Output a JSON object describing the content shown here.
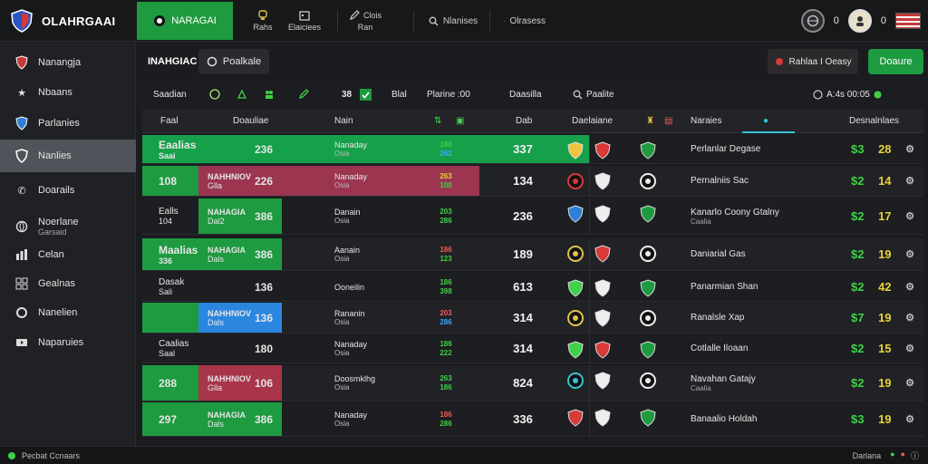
{
  "app": {
    "title": "OLAHRGAAI",
    "active_tab": "NARAGAI"
  },
  "top_nav": [
    {
      "icon": "trophy-icon",
      "label": "Rahs"
    },
    {
      "icon": "calendar-icon",
      "label": "Elaiciees"
    },
    {
      "icon": "pencil-icon",
      "label": "Clois",
      "sub": "Ran"
    },
    {
      "icon": "search-icon",
      "label": "Nlanises"
    },
    {
      "icon": "gear-icon",
      "label": "Olrasess"
    }
  ],
  "top_right": {
    "count1": "0",
    "count2": "0"
  },
  "sidebar": {
    "items": [
      {
        "icon": "shield-icon",
        "label": "Nanangja"
      },
      {
        "icon": "star-icon",
        "label": "Nbaans"
      },
      {
        "icon": "flag-icon",
        "label": "Parlanies"
      },
      {
        "icon": "shield-check-icon",
        "label": "Nanlies"
      },
      {
        "icon": "phone-icon",
        "label": "Doarails"
      },
      {
        "icon": "globe-icon",
        "label": "Noerlane",
        "sub": "Garsaid"
      },
      {
        "icon": "chart-icon",
        "label": "Celan"
      },
      {
        "icon": "grid-icon",
        "label": "Gealnas"
      },
      {
        "icon": "circle-icon",
        "label": "Nanelien"
      },
      {
        "icon": "video-icon",
        "label": "Naparuies"
      }
    ]
  },
  "header": {
    "tab_label": "INAHGIAC",
    "button_label": "Poalkale",
    "red_button": "Rahlaa I Oeasy",
    "green_button": "Doaure"
  },
  "filter": {
    "label": "Saadian",
    "mid1": "Blal",
    "mid2": "Plarine :00",
    "right1": "Daasilla",
    "right2": "Paalite",
    "right3": "A:4s 00:05",
    "num": "38"
  },
  "columns": {
    "c1": "Faal",
    "c2": "Doauliae",
    "c3": "Nain",
    "c4": "Dab",
    "c5": "Daelaiane",
    "c6": "Naraies",
    "c7": "Desnalnlaes"
  },
  "rows": [
    {
      "lead": "Eaalias",
      "lead2": "Saai",
      "team": "",
      "team_val": "236",
      "match": "Nanaday",
      "match2": "Osia",
      "odds": [
        "186",
        "262"
      ],
      "score": "337",
      "event": "Perlanlar Degase",
      "event2": "",
      "res1": "$3",
      "res2": "28"
    },
    {
      "lead": "108",
      "lead2": "",
      "team": "NAHHNIOV",
      "team2": "Glla",
      "team_val": "226",
      "match": "Nanaday",
      "match2": "Osia",
      "odds": [
        "263",
        "100"
      ],
      "score": "134",
      "event": "Pernalniis Sac",
      "event2": "",
      "res1": "$2",
      "res2": "14"
    },
    {
      "lead": "Ealls",
      "lead2": "104",
      "team": "NAHAGIA",
      "team2": "Dal2",
      "team_val": "386",
      "match": "Danain",
      "match2": "Osia",
      "odds": [
        "203",
        "286"
      ],
      "score": "236",
      "event": "Kanarlo Coony Gtalny",
      "event2": "Caalia",
      "res1": "$2",
      "res2": "17"
    },
    {
      "lead": "Maalias",
      "lead2": "336",
      "team": "NAHAGIA",
      "team2": "Dals",
      "team_val": "386",
      "match": "Aanain",
      "match2": "Osia",
      "odds": [
        "186",
        "123"
      ],
      "score": "189",
      "event": "Daniarial Gas",
      "event2": "",
      "res1": "$2",
      "res2": "19"
    },
    {
      "lead": "Dasak",
      "lead2": "Sali",
      "team": "",
      "team_val": "136",
      "match": "Ooneilin",
      "match2": "",
      "odds": [
        "186",
        "398"
      ],
      "score": "613",
      "event": "Panarmian Shan",
      "event2": "",
      "res1": "$2",
      "res2": "42"
    },
    {
      "lead": "",
      "lead2": "",
      "team": "NAHHNIOV",
      "team2": "Dals",
      "team_val": "136",
      "match": "Rananin",
      "match2": "Osia",
      "odds": [
        "203",
        "286"
      ],
      "score": "314",
      "event": "Ranalsle Xap",
      "event2": "",
      "res1": "$7",
      "res2": "19"
    },
    {
      "lead": "Caalias",
      "lead2": "Saal",
      "team": "",
      "team_val": "180",
      "match": "Nanaday",
      "match2": "Osia",
      "odds": [
        "186",
        "222"
      ],
      "score": "314",
      "event": "Cotlalle Iloaan",
      "event2": "",
      "res1": "$2",
      "res2": "15"
    },
    {
      "lead": "288",
      "lead2": "",
      "team": "NAHHNIOV",
      "team2": "Glla",
      "team_val": "106",
      "match": "Doosmklhg",
      "match2": "Osia",
      "odds": [
        "263",
        "186"
      ],
      "score": "824",
      "event": "Navahan Gatajy",
      "event2": "Caalia",
      "res1": "$2",
      "res2": "19"
    },
    {
      "lead": "297",
      "lead2": "",
      "team": "NAHAGIA",
      "team2": "Dals",
      "team_val": "386",
      "match": "Nanaday",
      "match2": "Osia",
      "odds": [
        "186",
        "286"
      ],
      "score": "336",
      "event": "Banaalio Holdah",
      "event2": "",
      "res1": "$3",
      "res2": "19"
    }
  ],
  "footer": {
    "left": "Pecbat Ccnaars",
    "right": "Darlana"
  }
}
